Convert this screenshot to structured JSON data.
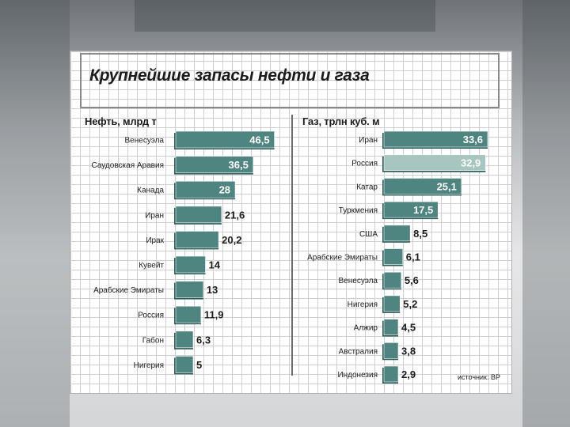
{
  "title": "Крупнейшие запасы нефти и газа",
  "source": "источник: BP",
  "colors": {
    "bar": "#4f8580",
    "bar_dark": "#2f5e5a",
    "bar_highlight": "#a7c6bf",
    "grid": "#cfcfd3"
  },
  "chart_data": [
    {
      "type": "bar",
      "orientation": "horizontal",
      "title": "Нефть, млрд т",
      "categories": [
        "Венесуэла",
        "Саудовская Аравия",
        "Канада",
        "Иран",
        "Ирак",
        "Кувейт",
        "Арабские Эмираты",
        "Россия",
        "Габон",
        "Нигерия"
      ],
      "values": [
        46.5,
        36.5,
        28,
        21.6,
        20.2,
        14,
        13,
        11.9,
        6.3,
        5
      ],
      "labels": [
        "46,5",
        "36,5",
        "28",
        "21,6",
        "20,2",
        "14",
        "13",
        "11,9",
        "6,3",
        "5"
      ]
    },
    {
      "type": "bar",
      "orientation": "horizontal",
      "title": "Газ, трлн куб. м",
      "categories": [
        "Иран",
        "Россия",
        "Катар",
        "Туркмения",
        "США",
        "Арабские Эмираты",
        "Венесуэла",
        "Нигерия",
        "Алжир",
        "Австралия",
        "Индонезия"
      ],
      "values": [
        33.6,
        32.9,
        25.1,
        17.5,
        8.5,
        6.1,
        5.6,
        5.2,
        4.5,
        3.8,
        2.9
      ],
      "labels": [
        "33,6",
        "32,9",
        "25,1",
        "17,5",
        "8,5",
        "6,1",
        "5,6",
        "5,2",
        "4,5",
        "3,8",
        "2,9"
      ],
      "highlight_index": 1
    }
  ]
}
